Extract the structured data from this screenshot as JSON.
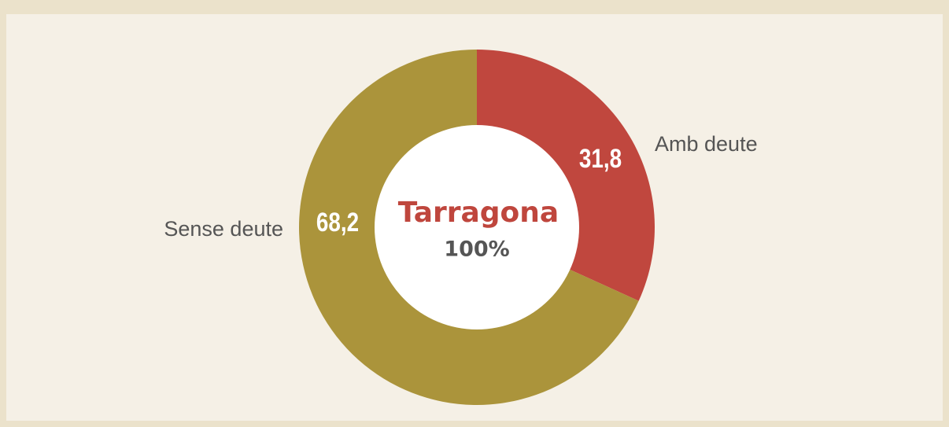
{
  "chart_data": {
    "type": "donut",
    "center_title": "Tarragona",
    "center_subtitle": "100%",
    "categories": [
      "Amb deute",
      "Sense deute"
    ],
    "values": [
      31.8,
      68.2
    ],
    "value_labels": [
      "31,8",
      "68,2"
    ],
    "colors": [
      "#c0473e",
      "#ab943b"
    ]
  }
}
